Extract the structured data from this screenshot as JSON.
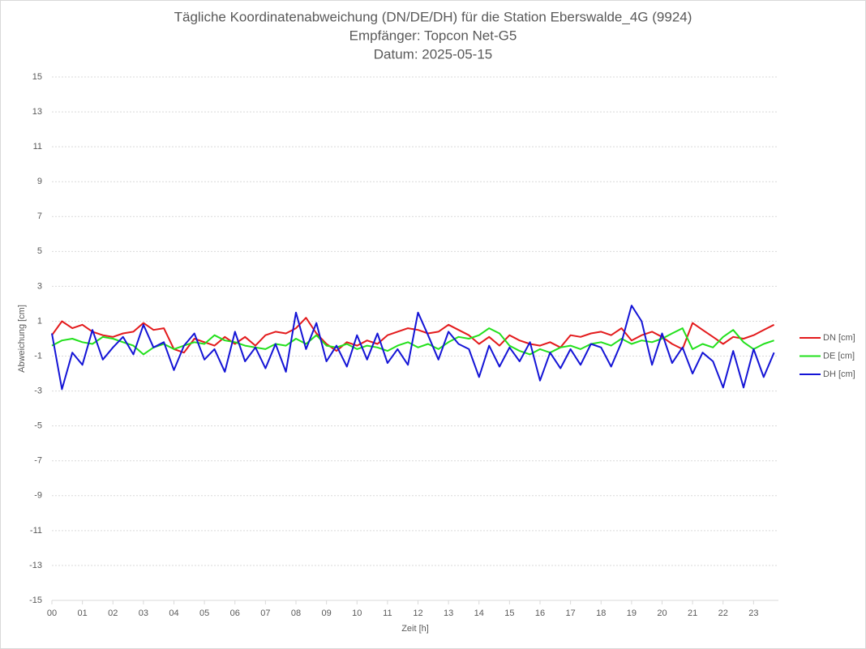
{
  "chart_data": {
    "type": "line",
    "title": "Tägliche Koordinatenabweichung (DN/DE/DH) für die Station Eberswalde_4G (9924)",
    "subtitle": "Empfänger: Topcon Net-G5",
    "date_label": "Datum: 2025-05-15",
    "x_label": "Zeit [h]",
    "y_label": "Abweichung [cm]",
    "x": [
      0,
      0.33,
      0.67,
      1,
      1.33,
      1.67,
      2,
      2.33,
      2.67,
      3,
      3.33,
      3.67,
      4,
      4.33,
      4.67,
      5,
      5.33,
      5.67,
      6,
      6.33,
      6.67,
      7,
      7.33,
      7.67,
      8,
      8.33,
      8.67,
      9,
      9.33,
      9.67,
      10,
      10.33,
      10.67,
      11,
      11.33,
      11.67,
      12,
      12.33,
      12.67,
      13,
      13.33,
      13.67,
      14,
      14.33,
      14.67,
      15,
      15.33,
      15.67,
      16,
      16.33,
      16.67,
      17,
      17.33,
      17.67,
      18,
      18.33,
      18.67,
      19,
      19.33,
      19.67,
      20,
      20.33,
      20.67,
      21,
      21.33,
      21.67,
      22,
      22.33,
      22.67,
      23,
      23.33,
      23.67
    ],
    "series": [
      {
        "name": "DN [cm]",
        "color": "#e31a1c",
        "values": [
          0.2,
          1.0,
          0.6,
          0.8,
          0.4,
          0.2,
          0.1,
          0.3,
          0.4,
          0.9,
          0.5,
          0.6,
          -0.6,
          -0.8,
          0.0,
          -0.2,
          -0.4,
          0.1,
          -0.3,
          0.1,
          -0.4,
          0.2,
          0.4,
          0.3,
          0.6,
          1.2,
          0.3,
          -0.3,
          -0.7,
          -0.2,
          -0.4,
          -0.1,
          -0.3,
          0.2,
          0.4,
          0.6,
          0.5,
          0.3,
          0.4,
          0.8,
          0.5,
          0.2,
          -0.3,
          0.1,
          -0.4,
          0.2,
          -0.1,
          -0.3,
          -0.4,
          -0.2,
          -0.5,
          0.2,
          0.1,
          0.3,
          0.4,
          0.2,
          0.6,
          -0.1,
          0.2,
          0.4,
          0.1,
          -0.3,
          -0.6,
          0.9,
          0.5,
          0.1,
          -0.3,
          0.1,
          0.0,
          0.2,
          0.5,
          0.8
        ]
      },
      {
        "name": "DE [cm]",
        "color": "#22e01c",
        "values": [
          -0.4,
          -0.1,
          0.0,
          -0.2,
          -0.3,
          0.1,
          0.0,
          -0.2,
          -0.4,
          -0.9,
          -0.5,
          -0.3,
          -0.6,
          -0.4,
          -0.2,
          -0.3,
          0.2,
          -0.1,
          -0.2,
          -0.4,
          -0.5,
          -0.6,
          -0.3,
          -0.4,
          0.0,
          -0.3,
          0.2,
          -0.4,
          -0.5,
          -0.3,
          -0.6,
          -0.4,
          -0.5,
          -0.7,
          -0.4,
          -0.2,
          -0.5,
          -0.3,
          -0.6,
          -0.2,
          0.1,
          0.0,
          0.2,
          0.6,
          0.3,
          -0.4,
          -0.7,
          -0.9,
          -0.6,
          -0.8,
          -0.5,
          -0.4,
          -0.6,
          -0.3,
          -0.2,
          -0.4,
          0.0,
          -0.3,
          -0.1,
          -0.2,
          0.0,
          0.3,
          0.6,
          -0.6,
          -0.3,
          -0.5,
          0.1,
          0.5,
          -0.2,
          -0.6,
          -0.3,
          -0.1
        ]
      },
      {
        "name": "DH [cm]",
        "color": "#1414d6",
        "values": [
          0.3,
          -2.9,
          -0.8,
          -1.5,
          0.5,
          -1.2,
          -0.5,
          0.1,
          -0.9,
          0.8,
          -0.5,
          -0.2,
          -1.8,
          -0.4,
          0.3,
          -1.2,
          -0.6,
          -1.9,
          0.4,
          -1.3,
          -0.5,
          -1.7,
          -0.3,
          -1.9,
          1.5,
          -0.6,
          0.9,
          -1.3,
          -0.4,
          -1.6,
          0.2,
          -1.2,
          0.3,
          -1.4,
          -0.6,
          -1.5,
          1.5,
          0.2,
          -1.2,
          0.4,
          -0.3,
          -0.6,
          -2.2,
          -0.4,
          -1.6,
          -0.5,
          -1.3,
          -0.2,
          -2.4,
          -0.8,
          -1.7,
          -0.6,
          -1.5,
          -0.3,
          -0.5,
          -1.6,
          -0.2,
          1.9,
          1.0,
          -1.5,
          0.3,
          -1.4,
          -0.5,
          -2.0,
          -0.8,
          -1.3,
          -2.8,
          -0.7,
          -2.8,
          -0.6,
          -2.2,
          -0.8
        ]
      }
    ],
    "xlim": [
      0,
      24
    ],
    "xticks": [
      {
        "value": 0,
        "label": "00"
      },
      {
        "value": 1,
        "label": "01"
      },
      {
        "value": 2,
        "label": "02"
      },
      {
        "value": 3,
        "label": "03"
      },
      {
        "value": 4,
        "label": "04"
      },
      {
        "value": 5,
        "label": "05"
      },
      {
        "value": 6,
        "label": "06"
      },
      {
        "value": 7,
        "label": "07"
      },
      {
        "value": 8,
        "label": "08"
      },
      {
        "value": 9,
        "label": "09"
      },
      10,
      11,
      12,
      13,
      14,
      15,
      16,
      17,
      18,
      19,
      20,
      21,
      22,
      23
    ],
    "ylim": [
      -15,
      15
    ],
    "yticks": [
      -15,
      -13,
      -11,
      -9,
      -7,
      -5,
      -3,
      -1,
      1,
      3,
      5,
      7,
      9,
      11,
      13,
      15
    ],
    "grid": true,
    "legend": "right"
  }
}
